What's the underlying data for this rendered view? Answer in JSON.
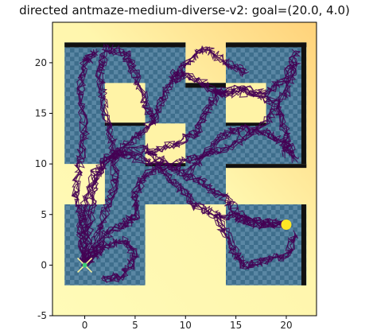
{
  "chart_data": {
    "type": "scatter",
    "title": "directed antmaze-medium-diverse-v2: goal=(20.0, 4.0)",
    "xlabel": "",
    "ylabel": "",
    "xlim": [
      -3.2,
      23.0
    ],
    "ylim": [
      -5.0,
      24.0
    ],
    "x_ticks": [
      0,
      5,
      10,
      15,
      20
    ],
    "y_ticks": [
      -5,
      0,
      5,
      10,
      15,
      20
    ],
    "grid": false,
    "goal": [
      20.0,
      4.0
    ],
    "start": [
      0.0,
      0.0
    ],
    "colors": {
      "background_light": "#fffbb8",
      "background_warm": "#ffd27a",
      "floor": "#3e6e8c",
      "floor_alt": "#5a87a4",
      "wall_shadow": "#111111",
      "trajectory": "#440154",
      "goal": "#fde725",
      "start_marker": "#3ecf74",
      "start_cross": "#f7f3a1"
    }
  }
}
